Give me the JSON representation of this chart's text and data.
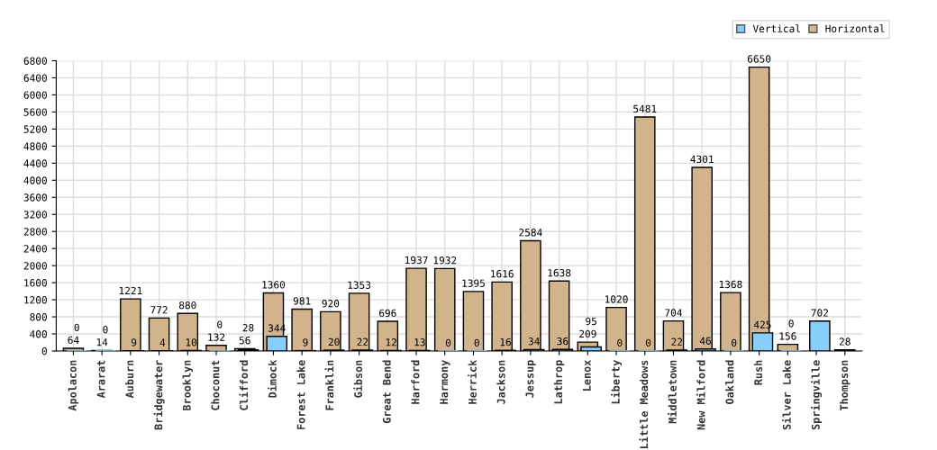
{
  "chart_data": {
    "type": "bar",
    "categories": [
      "Apolacon",
      "Ararat",
      "Auburn",
      "Bridgewater",
      "Brooklyn",
      "Choconut",
      "Clifford",
      "Dimock",
      "Forest Lake",
      "Franklin",
      "Gibson",
      "Great Bend",
      "Harford",
      "Harmony",
      "Herrick",
      "Jackson",
      "Jessup",
      "Lathrop",
      "Lenox",
      "Liberty",
      "Little Meadows",
      "Middletown",
      "New Milford",
      "Oakland",
      "Rush",
      "Silver Lake",
      "Springville",
      "Thompson"
    ],
    "series": [
      {
        "name": "Horizontal",
        "color": "#d2b48c",
        "values": [
          64,
          14,
          1221,
          772,
          880,
          132,
          56,
          1360,
          981,
          920,
          1353,
          696,
          1937,
          1932,
          1395,
          1616,
          2584,
          1638,
          209,
          1020,
          5481,
          704,
          4301,
          1368,
          6650,
          156,
          null,
          28
        ]
      },
      {
        "name": "Vertical",
        "color": "#87cefa",
        "values": [
          0,
          0,
          9,
          4,
          10,
          0,
          28,
          344,
          9,
          20,
          22,
          12,
          13,
          0,
          0,
          16,
          34,
          36,
          95,
          0,
          0,
          22,
          46,
          0,
          425,
          0,
          702,
          null
        ]
      }
    ],
    "ylim": [
      0,
      6800
    ],
    "yticks": [
      0,
      400,
      800,
      1200,
      1600,
      2000,
      2400,
      2800,
      3200,
      3600,
      4000,
      4400,
      4800,
      5200,
      5600,
      6000,
      6400,
      6800
    ],
    "grid": true,
    "legend": "top right",
    "data_labels": true
  }
}
